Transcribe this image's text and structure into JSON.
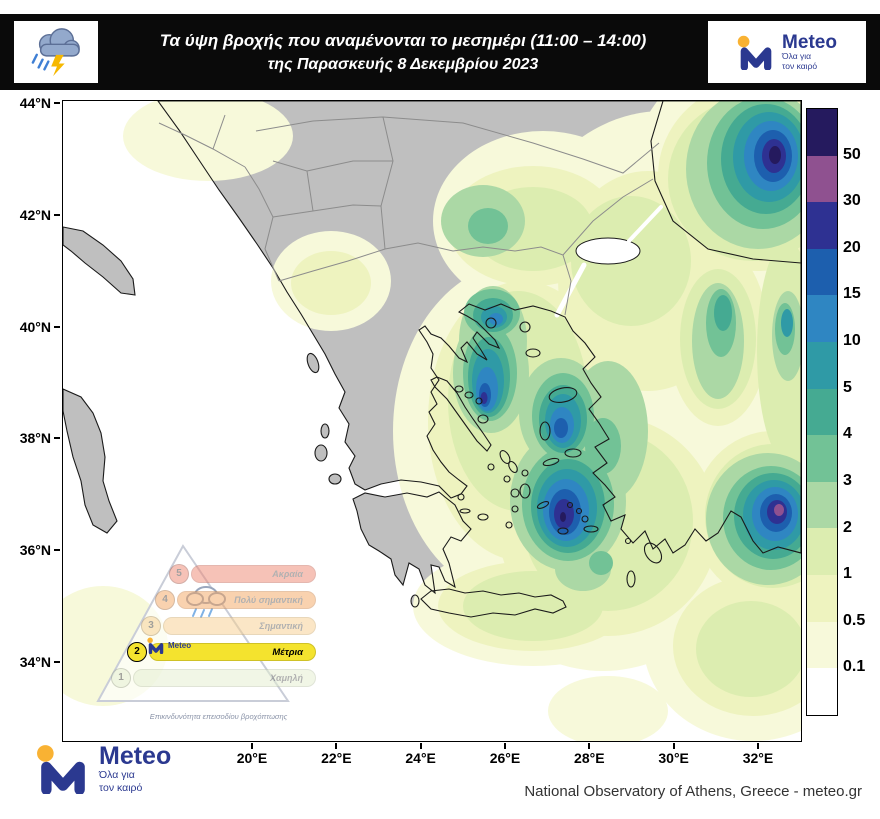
{
  "header": {
    "title_line1": "Τα ύψη βροχής που αναμένονται το μεσημέρι (11:00 – 14:00)",
    "title_line2": "της Παρασκευής 8 Δεκεμβρίου 2023"
  },
  "brand": {
    "name": "Meteo",
    "tagline_line1": "Όλα για",
    "tagline_line2": "τον καιρό",
    "blue": "#2b3990",
    "yellow": "#f9b233"
  },
  "axes": {
    "lat_labels": [
      "44°N",
      "42°N",
      "40°N",
      "38°N",
      "36°N",
      "34°N"
    ],
    "lon_labels": [
      "20°E",
      "22°E",
      "24°E",
      "26°E",
      "28°E",
      "30°E",
      "32°E"
    ]
  },
  "colorbar": {
    "labels": [
      "50",
      "30",
      "20",
      "15",
      "10",
      "5",
      "4",
      "3",
      "2",
      "1",
      "0.5",
      "0.1"
    ],
    "colors": [
      "#251a5e",
      "#8f5190",
      "#2e3192",
      "#1d5fae",
      "#2f86c2",
      "#2f9aa6",
      "#45aa92",
      "#72c296",
      "#abd8a5",
      "#dcedb0",
      "#eef3bf",
      "#f7f9da",
      "#ffffff"
    ]
  },
  "hazard_legend": {
    "caption": "Επικινδυνότητα επεισοδίου βροχόπτωσης",
    "levels": [
      {
        "num": "5",
        "label": "Ακραία",
        "color": "#ef8672",
        "active": false
      },
      {
        "num": "4",
        "label": "Πολύ σημαντική",
        "color": "#f5a662",
        "active": false
      },
      {
        "num": "3",
        "label": "Σημαντική",
        "color": "#f8cf8e",
        "active": false
      },
      {
        "num": "2",
        "label": "Μέτρια",
        "color": "#f4e32e",
        "active": true
      },
      {
        "num": "1",
        "label": "Χαμηλή",
        "color": "#e4efcf",
        "active": false
      }
    ]
  },
  "footer": {
    "credit": "National Observatory of Athens, Greece - meteo.gr"
  }
}
